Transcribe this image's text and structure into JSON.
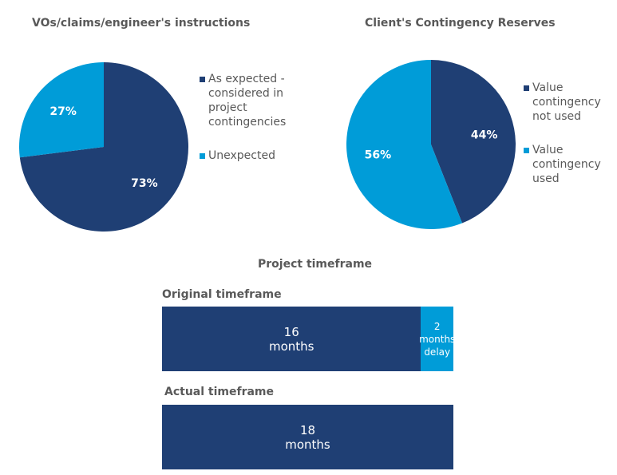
{
  "colors": {
    "dark": "#1F3F74",
    "light": "#009CD8"
  },
  "chart_data": [
    {
      "type": "pie",
      "title": "VOs/claims/engineer's instructions",
      "slices": [
        {
          "label": "As expected - considered in project contingencies",
          "value": 73,
          "display": "73%",
          "color": "#1F3F74"
        },
        {
          "label": "Unexpected",
          "value": 27,
          "display": "27%",
          "color": "#009CD8"
        }
      ]
    },
    {
      "type": "pie",
      "title": "Client's Contingency Reserves",
      "slices": [
        {
          "label": "Value contingency not used",
          "value": 44,
          "display": "44%",
          "color": "#1F3F74"
        },
        {
          "label": "Value contingency used",
          "value": 56,
          "display": "56%",
          "color": "#009CD8"
        }
      ]
    },
    {
      "type": "bar",
      "orientation": "horizontal",
      "stacked": true,
      "title": "Project timeframe",
      "categories": [
        "Original timeframe",
        "Actual timeframe"
      ],
      "series": [
        {
          "values": [
            16,
            18
          ],
          "color": "#1F3F74",
          "labels": [
            [
              "16",
              "months"
            ],
            [
              "18",
              "months"
            ]
          ]
        },
        {
          "values": [
            2,
            0
          ],
          "color": "#009CD8",
          "labels": [
            [
              "2 months",
              "delay"
            ],
            []
          ]
        }
      ]
    }
  ]
}
